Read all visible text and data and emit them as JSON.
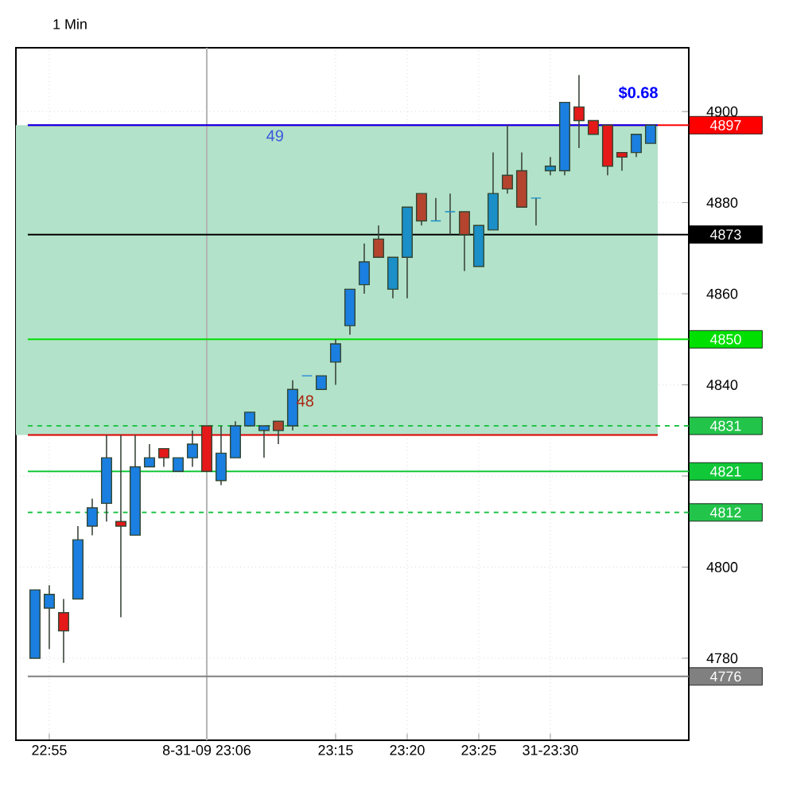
{
  "chart_data": {
    "type": "candlestick",
    "title": "1 Min",
    "categories": [
      null,
      "22:55",
      null,
      null,
      null,
      null,
      null,
      null,
      null,
      null,
      null,
      null,
      "8-31-09 23:06",
      null,
      null,
      null,
      null,
      null,
      null,
      null,
      null,
      "23:15",
      null,
      null,
      null,
      null,
      "23:20",
      null,
      null,
      null,
      null,
      "23:25",
      null,
      null,
      null,
      null,
      "31-23:30",
      null,
      null,
      null,
      null,
      null,
      null,
      null
    ],
    "ohlc": [
      [
        4780,
        4795,
        4780,
        4795
      ],
      [
        4791,
        4796,
        4782,
        4794
      ],
      [
        4790,
        4793,
        4779,
        4786
      ],
      [
        4793,
        4809,
        4793,
        4806
      ],
      [
        4809,
        4815,
        4807,
        4813
      ],
      [
        4814,
        4829,
        4810,
        4824
      ],
      [
        4810,
        4829,
        4789,
        4809
      ],
      [
        4807,
        4829,
        4807,
        4822
      ],
      [
        4822,
        4827,
        4822,
        4824
      ],
      [
        4826,
        4826,
        4822,
        4824
      ],
      [
        4821,
        4824,
        4821,
        4824
      ],
      [
        4824,
        4830,
        4822,
        4827
      ],
      [
        4831,
        4831,
        4821,
        4821
      ],
      [
        4819,
        4831,
        4818,
        4825
      ],
      [
        4824,
        4832,
        4824,
        4831
      ],
      [
        4831,
        4834,
        4831,
        4834
      ],
      [
        4830,
        4831,
        4824,
        4831
      ],
      [
        4832,
        4832,
        4827,
        4830
      ],
      [
        4831,
        4841,
        4830,
        4839
      ],
      [
        4842,
        4842,
        4842,
        4842
      ],
      [
        4839,
        4842,
        4839,
        4842
      ],
      [
        4845,
        4850,
        4840,
        4849
      ],
      [
        4853,
        4861,
        4851,
        4861
      ],
      [
        4862,
        4871,
        4860,
        4867
      ],
      [
        4872,
        4875,
        4868,
        4868
      ],
      [
        4861,
        4868,
        4859,
        4868
      ],
      [
        4868,
        4879,
        4859,
        4879
      ],
      [
        4882,
        4882,
        4875,
        4876
      ],
      [
        4876,
        4881,
        4876,
        4876
      ],
      [
        4878,
        4882,
        4873,
        4878
      ],
      [
        4878,
        4878,
        4865,
        4873
      ],
      [
        4866,
        4875,
        4866,
        4875
      ],
      [
        4874,
        4891,
        4874,
        4882
      ],
      [
        4886,
        4897,
        4882,
        4883
      ],
      [
        4887,
        4891,
        4879,
        4879
      ],
      [
        4881,
        4881,
        4875,
        4881
      ],
      [
        4887,
        4890,
        4886,
        4888
      ],
      [
        4887,
        4902,
        4886,
        4902
      ],
      [
        4901,
        4908,
        4892,
        4898
      ],
      [
        4898,
        4898,
        4895,
        4895
      ],
      [
        4897,
        4897,
        4886,
        4888
      ],
      [
        4891,
        4891,
        4887,
        4890
      ],
      [
        4891,
        4895,
        4890,
        4895
      ],
      [
        4893,
        4897,
        4893,
        4897
      ]
    ],
    "colors": [
      "#1a7fe0",
      "#1a7fe0",
      "#e51919",
      "#1a7fe0",
      "#1a7fe0",
      "#1a7fe0",
      "#e51919",
      "#1a7fe0",
      "#1a7fe0",
      "#e51919",
      "#1a7fe0",
      "#1a7fe0",
      "#e51919",
      "#1a7fe0",
      "#1a7fe0",
      "#1a7fe0",
      "#1a7fe0",
      "#b5442e",
      "#1a7fe0",
      "#1a7fe0",
      "#1a7fe0",
      "#1a7fe0",
      "#1a7fe0",
      "#1a7fe0",
      "#b5442e",
      "#1a8fc8",
      "#1a8fc8",
      "#b5442e",
      "#1a8fc8",
      "#1a8fc8",
      "#b5442e",
      "#1a8fc8",
      "#1a8fc8",
      "#b5442e",
      "#b5442e",
      "#1a8fc8",
      "#1a8fc8",
      "#1a7fe0",
      "#e51919",
      "#e51919",
      "#e51919",
      "#e51919",
      "#1a7fe0",
      "#1a7fe0"
    ],
    "ylim": [
      4762,
      4914
    ],
    "yticks": [
      4780,
      4800,
      {
        "value": 4820,
        "label": null
      },
      4840,
      4860,
      4880,
      4900
    ],
    "grid": true,
    "bands": [
      {
        "axis": "y",
        "from": 4829,
        "to": 4897,
        "color": "#b2e2c9"
      }
    ],
    "ref_lines": [
      {
        "axis": "x",
        "value": "8-31-09 23:06",
        "color": "#b4b4b4"
      },
      {
        "axis": "y",
        "value": 4897,
        "label": "4897",
        "color": "#ff0000"
      },
      {
        "axis": "y",
        "value": 4897,
        "color": "#0000ff"
      },
      {
        "axis": "y",
        "value": 4873,
        "label": "4873",
        "color": "#000000"
      },
      {
        "axis": "y",
        "value": 4850,
        "label": "4850",
        "color": "#00e000"
      },
      {
        "axis": "y",
        "value": 4831,
        "label": "4831",
        "color": "#22c44a",
        "line_style": "dashed"
      },
      {
        "axis": "y",
        "value": 4829,
        "color": "#dd0000"
      },
      {
        "axis": "y",
        "value": 4821,
        "label": "4821",
        "color": "#10c838"
      },
      {
        "axis": "y",
        "value": 4812,
        "label": "4812",
        "color": "#22c44a",
        "line_style": "dashed"
      },
      {
        "axis": "y",
        "value": 4776,
        "label": "4776",
        "color": "#808080"
      }
    ],
    "annotations": [
      "49",
      "$0.68",
      "48"
    ]
  }
}
